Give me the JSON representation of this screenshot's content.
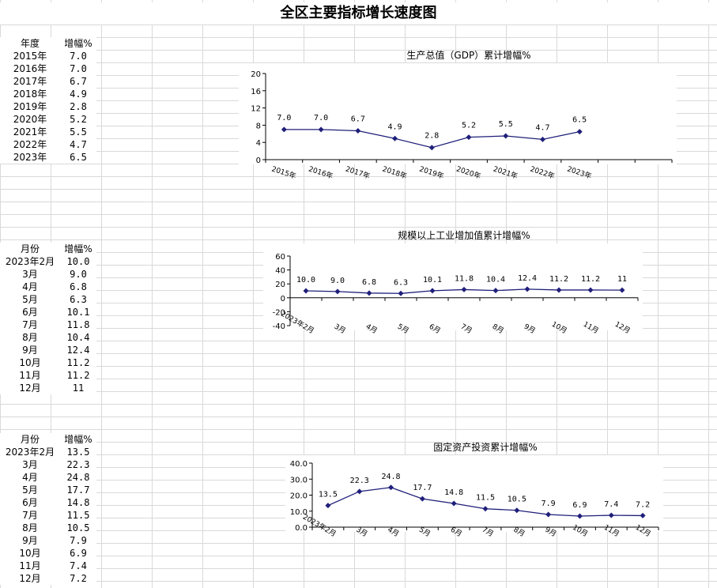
{
  "page_title": "全区主要指标增长速度图",
  "tables": [
    {
      "header": [
        "年度",
        "增幅%"
      ],
      "rows": [
        [
          "2015年",
          "7.0"
        ],
        [
          "2016年",
          "7.0"
        ],
        [
          "2017年",
          "6.7"
        ],
        [
          "2018年",
          "4.9"
        ],
        [
          "2019年",
          "2.8"
        ],
        [
          "2020年",
          "5.2"
        ],
        [
          "2021年",
          "5.5"
        ],
        [
          "2022年",
          "4.7"
        ],
        [
          "2023年",
          "6.5"
        ]
      ]
    },
    {
      "header": [
        "月份",
        "增幅%"
      ],
      "rows": [
        [
          "2023年2月",
          "10.0"
        ],
        [
          "3月",
          "9.0"
        ],
        [
          "4月",
          "6.8"
        ],
        [
          "5月",
          "6.3"
        ],
        [
          "6月",
          "10.1"
        ],
        [
          "7月",
          "11.8"
        ],
        [
          "8月",
          "10.4"
        ],
        [
          "9月",
          "12.4"
        ],
        [
          "10月",
          "11.2"
        ],
        [
          "11月",
          "11.2"
        ],
        [
          "12月",
          "11"
        ]
      ]
    },
    {
      "header": [
        "月份",
        "增幅%"
      ],
      "rows": [
        [
          "2023年2月",
          "13.5"
        ],
        [
          "3月",
          "22.3"
        ],
        [
          "4月",
          "24.8"
        ],
        [
          "5月",
          "17.7"
        ],
        [
          "6月",
          "14.8"
        ],
        [
          "7月",
          "11.5"
        ],
        [
          "8月",
          "10.5"
        ],
        [
          "9月",
          "7.9"
        ],
        [
          "10月",
          "6.9"
        ],
        [
          "11月",
          "7.4"
        ],
        [
          "12月",
          "7.2"
        ]
      ]
    }
  ],
  "chart_data": [
    {
      "type": "line",
      "title": "生产总值（GDP）累计增幅%",
      "categories": [
        "2015年",
        "2016年",
        "2017年",
        "2018年",
        "2019年",
        "2020年",
        "2021年",
        "2022年",
        "2023年"
      ],
      "values": [
        7.0,
        7.0,
        6.7,
        4.9,
        2.8,
        5.2,
        5.5,
        4.7,
        6.5
      ],
      "data_labels": [
        "7.0",
        "7.0",
        "6.7",
        "4.9",
        "2.8",
        "5.2",
        "5.5",
        "4.7",
        "6.5"
      ],
      "slots": 11,
      "ylim": [
        0,
        20
      ],
      "yticks": [
        "0",
        "4",
        "8",
        "12",
        "16",
        "20"
      ],
      "grid": false,
      "line_color": "#1f1f7a"
    },
    {
      "type": "line",
      "title": "规模以上工业增加值累计增幅%",
      "categories": [
        "2023年2月",
        "3月",
        "4月",
        "5月",
        "6月",
        "7月",
        "8月",
        "9月",
        "10月",
        "11月",
        "12月"
      ],
      "values": [
        10.0,
        9.0,
        6.8,
        6.3,
        10.1,
        11.8,
        10.4,
        12.4,
        11.2,
        11.2,
        11
      ],
      "data_labels": [
        "10.0",
        "9.0",
        "6.8",
        "6.3",
        "10.1",
        "11.8",
        "10.4",
        "12.4",
        "11.2",
        "11.2",
        "11"
      ],
      "slots": 11,
      "ylim": [
        -40,
        60
      ],
      "yticks": [
        "-40",
        "-20",
        "0",
        "20",
        "40",
        "60"
      ],
      "grid": false,
      "line_color": "#1f1f7a"
    },
    {
      "type": "line",
      "title": "固定资产投资累计增幅%",
      "categories": [
        "2023年2月",
        "3月",
        "4月",
        "5月",
        "6月",
        "7月",
        "8月",
        "9月",
        "10月",
        "11月",
        "12月"
      ],
      "values": [
        13.5,
        22.3,
        24.8,
        17.7,
        14.8,
        11.5,
        10.5,
        7.9,
        6.9,
        7.4,
        7.2
      ],
      "data_labels": [
        "13.5",
        "22.3",
        "24.8",
        "17.7",
        "14.8",
        "11.5",
        "10.5",
        "7.9",
        "6.9",
        "7.4",
        "7.2"
      ],
      "slots": 11,
      "ylim": [
        0,
        40
      ],
      "yticks": [
        "0.0",
        "10.0",
        "20.0",
        "30.0",
        "40.0"
      ],
      "grid": false,
      "line_color": "#1f1f7a"
    }
  ]
}
